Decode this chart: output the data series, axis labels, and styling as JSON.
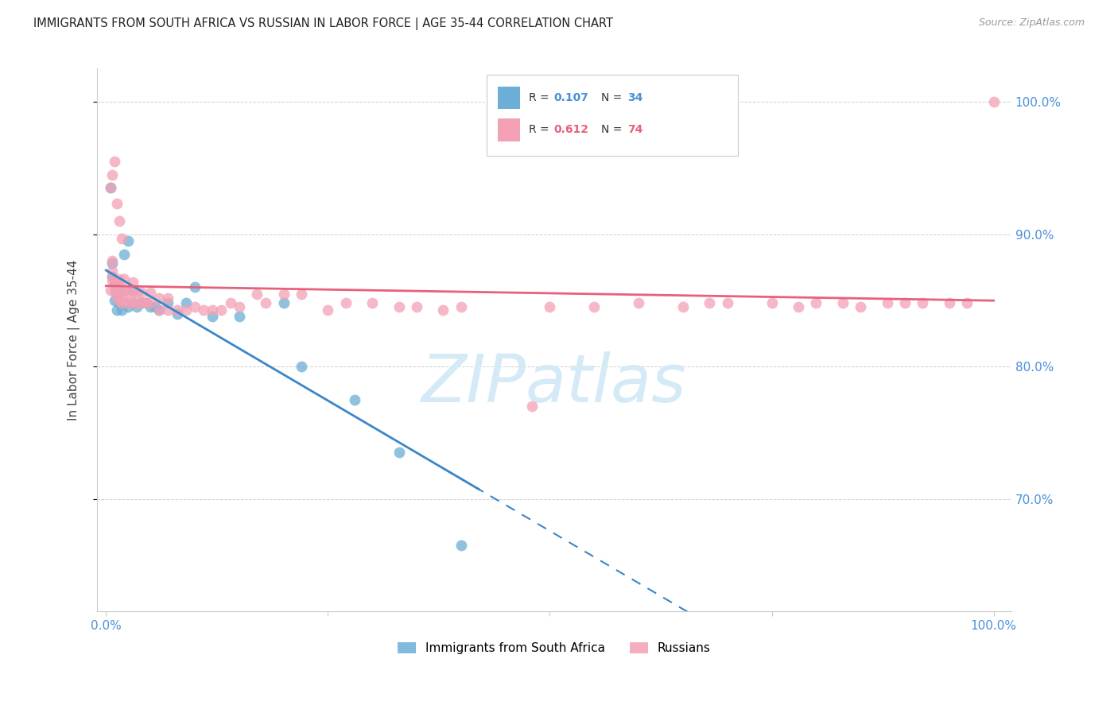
{
  "title": "IMMIGRANTS FROM SOUTH AFRICA VS RUSSIAN IN LABOR FORCE | AGE 35-44 CORRELATION CHART",
  "source": "Source: ZipAtlas.com",
  "ylabel": "In Labor Force | Age 35-44",
  "xlim": [
    -0.01,
    1.02
  ],
  "ylim": [
    0.615,
    1.025
  ],
  "ytick_positions": [
    0.7,
    0.8,
    0.9,
    1.0
  ],
  "ytick_labels": [
    "70.0%",
    "80.0%",
    "90.0%",
    "100.0%"
  ],
  "xtick_positions": [
    0.0,
    0.25,
    0.5,
    0.75,
    1.0
  ],
  "xtick_labels": [
    "0.0%",
    "",
    "",
    "",
    "100.0%"
  ],
  "color_blue": "#6baed6",
  "color_pink": "#f4a0b5",
  "line_blue": "#3a86c8",
  "line_pink": "#e8607a",
  "watermark_text": "ZIPatlas",
  "watermark_color": "#d5eaf7",
  "legend_r1": "0.107",
  "legend_n1": "34",
  "legend_r2": "0.612",
  "legend_n2": "74",
  "blue_x": [
    0.005,
    0.007,
    0.007,
    0.01,
    0.01,
    0.012,
    0.012,
    0.015,
    0.015,
    0.018,
    0.02,
    0.02,
    0.025,
    0.03,
    0.03,
    0.035,
    0.04,
    0.045,
    0.05,
    0.055,
    0.06,
    0.07,
    0.08,
    0.09,
    0.1,
    0.12,
    0.15,
    0.2,
    0.22,
    0.28,
    0.33,
    0.4,
    0.02,
    0.025
  ],
  "blue_y": [
    0.935,
    0.868,
    0.878,
    0.85,
    0.862,
    0.843,
    0.855,
    0.848,
    0.858,
    0.843,
    0.848,
    0.858,
    0.845,
    0.848,
    0.858,
    0.845,
    0.848,
    0.848,
    0.845,
    0.845,
    0.843,
    0.848,
    0.84,
    0.848,
    0.86,
    0.838,
    0.838,
    0.848,
    0.8,
    0.775,
    0.735,
    0.665,
    0.885,
    0.895
  ],
  "pink_x": [
    0.005,
    0.007,
    0.007,
    0.007,
    0.01,
    0.01,
    0.012,
    0.012,
    0.015,
    0.015,
    0.015,
    0.018,
    0.02,
    0.02,
    0.02,
    0.025,
    0.025,
    0.03,
    0.03,
    0.03,
    0.035,
    0.035,
    0.04,
    0.04,
    0.045,
    0.05,
    0.05,
    0.06,
    0.06,
    0.07,
    0.07,
    0.08,
    0.09,
    0.1,
    0.11,
    0.12,
    0.13,
    0.14,
    0.15,
    0.17,
    0.18,
    0.2,
    0.22,
    0.25,
    0.27,
    0.3,
    0.33,
    0.35,
    0.38,
    0.4,
    0.48,
    0.5,
    0.55,
    0.6,
    0.65,
    0.68,
    0.7,
    0.75,
    0.78,
    0.8,
    0.83,
    0.85,
    0.88,
    0.9,
    0.92,
    0.95,
    0.97,
    1.0,
    0.005,
    0.007,
    0.01,
    0.012,
    0.015,
    0.018
  ],
  "pink_y": [
    0.858,
    0.865,
    0.872,
    0.88,
    0.857,
    0.865,
    0.853,
    0.862,
    0.85,
    0.858,
    0.866,
    0.848,
    0.85,
    0.858,
    0.866,
    0.848,
    0.856,
    0.848,
    0.856,
    0.864,
    0.848,
    0.856,
    0.848,
    0.856,
    0.848,
    0.848,
    0.856,
    0.843,
    0.852,
    0.843,
    0.852,
    0.843,
    0.843,
    0.845,
    0.843,
    0.843,
    0.843,
    0.848,
    0.845,
    0.855,
    0.848,
    0.855,
    0.855,
    0.843,
    0.848,
    0.848,
    0.845,
    0.845,
    0.843,
    0.845,
    0.77,
    0.845,
    0.845,
    0.848,
    0.845,
    0.848,
    0.848,
    0.848,
    0.845,
    0.848,
    0.848,
    0.845,
    0.848,
    0.848,
    0.848,
    0.848,
    0.848,
    1.0,
    0.935,
    0.945,
    0.955,
    0.923,
    0.91,
    0.897
  ]
}
